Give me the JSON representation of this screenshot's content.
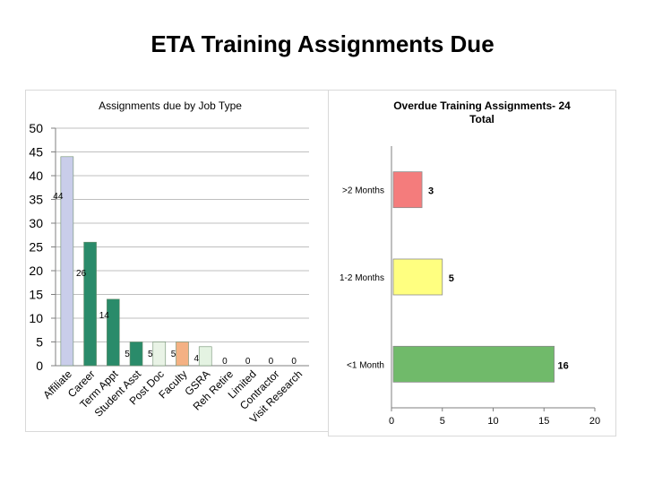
{
  "slide": {
    "title": "ETA Training Assignments Due"
  },
  "chart_data": [
    {
      "type": "bar",
      "title": "Assignments due by Job Type",
      "xlabel": "",
      "ylabel": "",
      "ylim": [
        0,
        50
      ],
      "yticks": [
        0,
        5,
        10,
        15,
        20,
        25,
        30,
        35,
        40,
        45,
        50
      ],
      "grid": true,
      "legend": "none",
      "categories": [
        "Affiliate",
        "Career",
        "Term Appt",
        "Student Asst",
        "Post Doc",
        "Faculty",
        "GSRA",
        "Reh Retire",
        "Limited",
        "Contractor",
        "Visit Research"
      ],
      "values": [
        44,
        26,
        14,
        5,
        5,
        5,
        4,
        0,
        0,
        0,
        0
      ],
      "data_labels": [
        "44",
        "26",
        "14",
        "5",
        "5",
        "5",
        "4",
        "0",
        "0",
        "0",
        "0"
      ],
      "colors": [
        "#c9cdea",
        "#2a8b6a",
        "#2a8b6a",
        "#2a8b6a",
        "#e9f3e6",
        "#f4b183",
        "#e4f3e2",
        "#2a8b6a",
        "#2a8b6a",
        "#2a8b6a",
        "#2a8b6a"
      ]
    },
    {
      "type": "bar",
      "orientation": "horizontal",
      "title": "Overdue Training Assignments- 24 Total",
      "title_lines": [
        "Overdue Training Assignments- 24",
        "Total"
      ],
      "xlabel": "",
      "ylabel": "",
      "xlim": [
        0,
        20
      ],
      "xticks": [
        0,
        5,
        10,
        15,
        20
      ],
      "grid": false,
      "legend": "none",
      "categories": [
        ">2 Months",
        "1-2 Months",
        "<1 Month"
      ],
      "values": [
        3,
        5,
        16
      ],
      "data_labels": [
        "3",
        "5",
        "16"
      ],
      "colors": [
        "#f47c7c",
        "#ffff80",
        "#70ba6a"
      ]
    }
  ]
}
